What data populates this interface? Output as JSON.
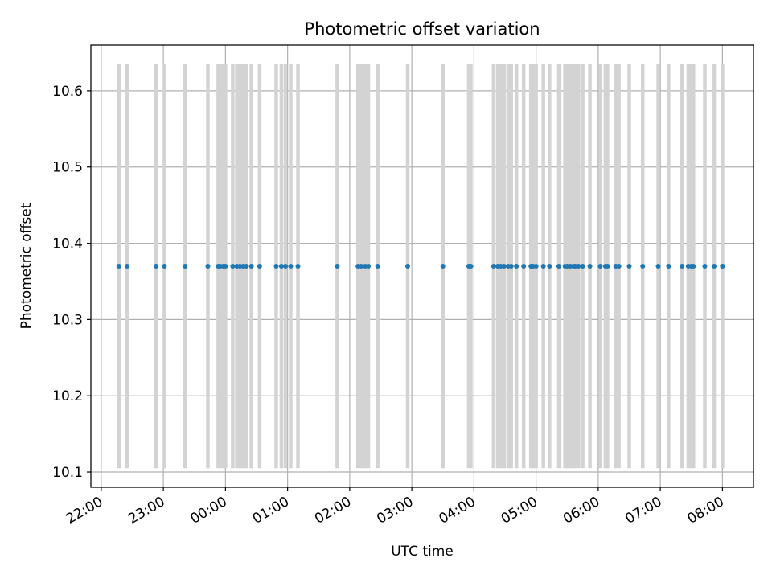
{
  "chart_data": {
    "type": "scatter",
    "title": "Photometric offset variation",
    "xlabel": "UTC time",
    "ylabel": "Photometric offset",
    "x_axis_type": "time",
    "xlim": [
      "21:50",
      "08:30"
    ],
    "x_ticks": [
      "22:00",
      "23:00",
      "00:00",
      "01:00",
      "02:00",
      "03:00",
      "04:00",
      "05:00",
      "06:00",
      "07:00",
      "08:00"
    ],
    "ylim": [
      10.08,
      10.66
    ],
    "y_ticks": [
      10.1,
      10.2,
      10.3,
      10.4,
      10.5,
      10.6
    ],
    "y_tick_labels": [
      "10.1",
      "10.2",
      "10.3",
      "10.4",
      "10.5",
      "10.6"
    ],
    "grid": true,
    "errorbar_half_width": 0.265,
    "colors": {
      "points": "#1f77b4",
      "errorbars": "#d3d3d3",
      "grid": "#b0b0b0"
    },
    "series": [
      {
        "x": [
          "22:17",
          "22:25",
          "22:53",
          "23:01",
          "23:21",
          "23:43",
          "23:53",
          "23:55",
          "23:58",
          "00:00",
          "00:07",
          "00:11",
          "00:14",
          "00:17",
          "00:20",
          "00:25",
          "00:33",
          "00:49",
          "00:54",
          "00:58",
          "01:03",
          "01:10",
          "01:48",
          "02:08",
          "02:11",
          "02:15",
          "02:18",
          "02:27",
          "02:56",
          "03:30",
          "03:55",
          "03:57",
          "04:19",
          "04:23",
          "04:26",
          "04:29",
          "04:33",
          "04:36",
          "04:41",
          "04:48",
          "04:55",
          "04:57",
          "05:00",
          "05:07",
          "05:13",
          "05:22",
          "05:28",
          "05:30",
          "05:33",
          "05:36",
          "05:38",
          "05:41",
          "05:45",
          "05:52",
          "06:02",
          "06:07",
          "06:09",
          "06:17",
          "06:20",
          "06:30",
          "06:43",
          "06:58",
          "07:08",
          "07:21",
          "07:27",
          "07:30",
          "07:32",
          "07:43",
          "07:52",
          "08:00",
          "08:00"
        ],
        "y": [
          10.37,
          10.37,
          10.37,
          10.37,
          10.37,
          10.37,
          10.37,
          10.37,
          10.37,
          10.37,
          10.37,
          10.37,
          10.37,
          10.37,
          10.37,
          10.37,
          10.37,
          10.37,
          10.37,
          10.37,
          10.37,
          10.37,
          10.37,
          10.37,
          10.37,
          10.37,
          10.37,
          10.37,
          10.37,
          10.37,
          10.37,
          10.37,
          10.37,
          10.37,
          10.37,
          10.37,
          10.37,
          10.37,
          10.37,
          10.37,
          10.37,
          10.37,
          10.37,
          10.37,
          10.37,
          10.37,
          10.37,
          10.37,
          10.37,
          10.37,
          10.37,
          10.37,
          10.37,
          10.37,
          10.37,
          10.37,
          10.37,
          10.37,
          10.37,
          10.37,
          10.37,
          10.37,
          10.37,
          10.37,
          10.37,
          10.37,
          10.37,
          10.37,
          10.37,
          10.37,
          10.37
        ]
      }
    ]
  }
}
